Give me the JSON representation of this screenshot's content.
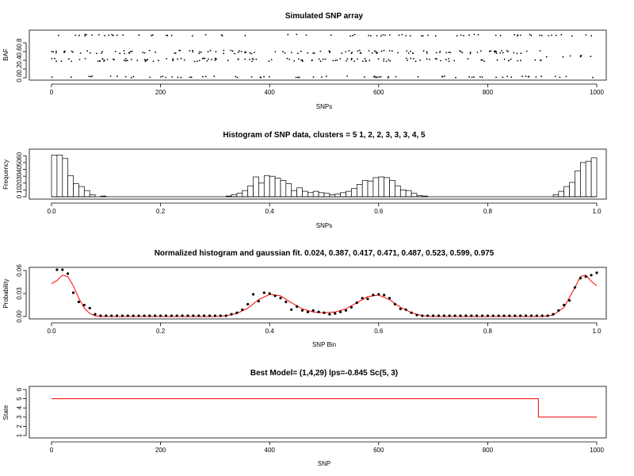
{
  "chart_data": [
    {
      "type": "scatter",
      "title": "Simulated SNP array",
      "xlabel": "SNPs",
      "ylabel": "BAF",
      "xlim": [
        0,
        1000
      ],
      "ylim": [
        0,
        1
      ],
      "xticks": [
        "0",
        "200",
        "400",
        "600",
        "800",
        "1000"
      ],
      "yticks": [
        "0.0",
        "0.2",
        "0.4",
        "0.6",
        "0.8"
      ],
      "point_color": "#000000",
      "bands": [
        {
          "y": 0.02,
          "from": 0,
          "to": 1000
        },
        {
          "y": 0.975,
          "from": 0,
          "to": 1000
        },
        {
          "y": 0.39,
          "from": 0,
          "to": 900
        },
        {
          "y": 0.61,
          "from": 0,
          "to": 900
        },
        {
          "y": 0.43,
          "from": 0,
          "to": 900
        },
        {
          "y": 0.57,
          "from": 0,
          "to": 900
        },
        {
          "y": 0.49,
          "from": 900,
          "to": 1000
        }
      ],
      "points_per_band": 70
    },
    {
      "type": "bar",
      "title": "Histogram of SNP data, clusters =  5   1, 2, 2, 3, 3, 3, 4, 5",
      "xlabel": "SNPs",
      "ylabel": "Frequency",
      "xlim": [
        0,
        1
      ],
      "ylim": [
        0,
        65
      ],
      "xticks": [
        "0.0",
        "0.2",
        "0.4",
        "0.6",
        "0.8",
        "1.0"
      ],
      "yticks": [
        "0",
        "10",
        "20",
        "30",
        "40",
        "50",
        "60"
      ],
      "bin_width": 0.01,
      "bins": [
        {
          "x": 0.0,
          "v": 61
        },
        {
          "x": 0.01,
          "v": 61
        },
        {
          "x": 0.02,
          "v": 56
        },
        {
          "x": 0.03,
          "v": 31
        },
        {
          "x": 0.04,
          "v": 19
        },
        {
          "x": 0.05,
          "v": 15
        },
        {
          "x": 0.06,
          "v": 9
        },
        {
          "x": 0.07,
          "v": 3
        },
        {
          "x": 0.08,
          "v": 0
        },
        {
          "x": 0.09,
          "v": 1
        },
        {
          "x": 0.32,
          "v": 1
        },
        {
          "x": 0.33,
          "v": 3
        },
        {
          "x": 0.34,
          "v": 5
        },
        {
          "x": 0.35,
          "v": 9
        },
        {
          "x": 0.36,
          "v": 16
        },
        {
          "x": 0.37,
          "v": 29
        },
        {
          "x": 0.38,
          "v": 20
        },
        {
          "x": 0.39,
          "v": 31
        },
        {
          "x": 0.4,
          "v": 30
        },
        {
          "x": 0.41,
          "v": 27
        },
        {
          "x": 0.42,
          "v": 24
        },
        {
          "x": 0.43,
          "v": 19
        },
        {
          "x": 0.44,
          "v": 9
        },
        {
          "x": 0.45,
          "v": 13
        },
        {
          "x": 0.46,
          "v": 8
        },
        {
          "x": 0.47,
          "v": 6
        },
        {
          "x": 0.48,
          "v": 8
        },
        {
          "x": 0.49,
          "v": 6
        },
        {
          "x": 0.5,
          "v": 5
        },
        {
          "x": 0.51,
          "v": 3
        },
        {
          "x": 0.52,
          "v": 4
        },
        {
          "x": 0.53,
          "v": 6
        },
        {
          "x": 0.54,
          "v": 8
        },
        {
          "x": 0.55,
          "v": 12
        },
        {
          "x": 0.56,
          "v": 18
        },
        {
          "x": 0.57,
          "v": 24
        },
        {
          "x": 0.58,
          "v": 23
        },
        {
          "x": 0.59,
          "v": 28
        },
        {
          "x": 0.6,
          "v": 29
        },
        {
          "x": 0.61,
          "v": 28
        },
        {
          "x": 0.62,
          "v": 24
        },
        {
          "x": 0.63,
          "v": 16
        },
        {
          "x": 0.64,
          "v": 10
        },
        {
          "x": 0.65,
          "v": 9
        },
        {
          "x": 0.66,
          "v": 5
        },
        {
          "x": 0.67,
          "v": 2
        },
        {
          "x": 0.68,
          "v": 1
        },
        {
          "x": 0.92,
          "v": 3
        },
        {
          "x": 0.93,
          "v": 8
        },
        {
          "x": 0.94,
          "v": 15
        },
        {
          "x": 0.95,
          "v": 21
        },
        {
          "x": 0.96,
          "v": 38
        },
        {
          "x": 0.97,
          "v": 50
        },
        {
          "x": 0.98,
          "v": 52
        },
        {
          "x": 0.99,
          "v": 57
        }
      ]
    },
    {
      "type": "scatter",
      "title": "Normalized histogram and gaussian fit.  0.024, 0.387, 0.417, 0.471, 0.487, 0.523, 0.599, 0.975",
      "xlabel": "SNP Bin",
      "ylabel": "Probability",
      "xlim": [
        0,
        1
      ],
      "ylim": [
        0,
        0.06
      ],
      "xticks": [
        "0.0",
        "0.2",
        "0.4",
        "0.6",
        "0.8",
        "1.0"
      ],
      "yticks": [
        "0.00",
        "0.03",
        "0.06"
      ],
      "point_color": "#000000",
      "fit_color": "#ff0000",
      "points": [
        {
          "x": 0.01,
          "y": 0.061
        },
        {
          "x": 0.02,
          "y": 0.061
        },
        {
          "x": 0.03,
          "y": 0.056
        },
        {
          "x": 0.04,
          "y": 0.031
        },
        {
          "x": 0.05,
          "y": 0.019
        },
        {
          "x": 0.06,
          "y": 0.015
        },
        {
          "x": 0.07,
          "y": 0.011
        },
        {
          "x": 0.08,
          "y": 0.003
        },
        {
          "x": 0.09,
          "y": 0.001
        },
        {
          "x": 0.1,
          "y": 0.001
        },
        {
          "x": 0.11,
          "y": 0.001
        },
        {
          "x": 0.12,
          "y": 0.001
        },
        {
          "x": 0.13,
          "y": 0.001
        },
        {
          "x": 0.14,
          "y": 0.001
        },
        {
          "x": 0.15,
          "y": 0.001
        },
        {
          "x": 0.16,
          "y": 0.001
        },
        {
          "x": 0.17,
          "y": 0.001
        },
        {
          "x": 0.18,
          "y": 0.001
        },
        {
          "x": 0.19,
          "y": 0.001
        },
        {
          "x": 0.2,
          "y": 0.001
        },
        {
          "x": 0.21,
          "y": 0.001
        },
        {
          "x": 0.22,
          "y": 0.001
        },
        {
          "x": 0.23,
          "y": 0.001
        },
        {
          "x": 0.24,
          "y": 0.001
        },
        {
          "x": 0.25,
          "y": 0.001
        },
        {
          "x": 0.26,
          "y": 0.001
        },
        {
          "x": 0.27,
          "y": 0.001
        },
        {
          "x": 0.28,
          "y": 0.001
        },
        {
          "x": 0.29,
          "y": 0.001
        },
        {
          "x": 0.3,
          "y": 0.001
        },
        {
          "x": 0.31,
          "y": 0.001
        },
        {
          "x": 0.32,
          "y": 0.001
        },
        {
          "x": 0.33,
          "y": 0.003
        },
        {
          "x": 0.34,
          "y": 0.005
        },
        {
          "x": 0.35,
          "y": 0.009
        },
        {
          "x": 0.36,
          "y": 0.016
        },
        {
          "x": 0.37,
          "y": 0.029
        },
        {
          "x": 0.38,
          "y": 0.02
        },
        {
          "x": 0.39,
          "y": 0.031
        },
        {
          "x": 0.4,
          "y": 0.03
        },
        {
          "x": 0.41,
          "y": 0.027
        },
        {
          "x": 0.42,
          "y": 0.024
        },
        {
          "x": 0.43,
          "y": 0.019
        },
        {
          "x": 0.44,
          "y": 0.009
        },
        {
          "x": 0.45,
          "y": 0.013
        },
        {
          "x": 0.46,
          "y": 0.008
        },
        {
          "x": 0.47,
          "y": 0.006
        },
        {
          "x": 0.48,
          "y": 0.008
        },
        {
          "x": 0.49,
          "y": 0.006
        },
        {
          "x": 0.5,
          "y": 0.005
        },
        {
          "x": 0.51,
          "y": 0.003
        },
        {
          "x": 0.52,
          "y": 0.004
        },
        {
          "x": 0.53,
          "y": 0.006
        },
        {
          "x": 0.54,
          "y": 0.008
        },
        {
          "x": 0.55,
          "y": 0.012
        },
        {
          "x": 0.56,
          "y": 0.018
        },
        {
          "x": 0.57,
          "y": 0.024
        },
        {
          "x": 0.58,
          "y": 0.023
        },
        {
          "x": 0.59,
          "y": 0.028
        },
        {
          "x": 0.6,
          "y": 0.029
        },
        {
          "x": 0.61,
          "y": 0.028
        },
        {
          "x": 0.62,
          "y": 0.024
        },
        {
          "x": 0.63,
          "y": 0.016
        },
        {
          "x": 0.64,
          "y": 0.01
        },
        {
          "x": 0.65,
          "y": 0.009
        },
        {
          "x": 0.66,
          "y": 0.005
        },
        {
          "x": 0.67,
          "y": 0.002
        },
        {
          "x": 0.68,
          "y": 0.001
        },
        {
          "x": 0.69,
          "y": 0.001
        },
        {
          "x": 0.7,
          "y": 0.001
        },
        {
          "x": 0.71,
          "y": 0.001
        },
        {
          "x": 0.72,
          "y": 0.001
        },
        {
          "x": 0.73,
          "y": 0.001
        },
        {
          "x": 0.74,
          "y": 0.001
        },
        {
          "x": 0.75,
          "y": 0.001
        },
        {
          "x": 0.76,
          "y": 0.001
        },
        {
          "x": 0.77,
          "y": 0.001
        },
        {
          "x": 0.78,
          "y": 0.001
        },
        {
          "x": 0.79,
          "y": 0.001
        },
        {
          "x": 0.8,
          "y": 0.001
        },
        {
          "x": 0.81,
          "y": 0.001
        },
        {
          "x": 0.82,
          "y": 0.001
        },
        {
          "x": 0.83,
          "y": 0.001
        },
        {
          "x": 0.84,
          "y": 0.001
        },
        {
          "x": 0.85,
          "y": 0.001
        },
        {
          "x": 0.86,
          "y": 0.001
        },
        {
          "x": 0.87,
          "y": 0.001
        },
        {
          "x": 0.88,
          "y": 0.001
        },
        {
          "x": 0.89,
          "y": 0.001
        },
        {
          "x": 0.9,
          "y": 0.001
        },
        {
          "x": 0.91,
          "y": 0.001
        },
        {
          "x": 0.92,
          "y": 0.003
        },
        {
          "x": 0.93,
          "y": 0.008
        },
        {
          "x": 0.94,
          "y": 0.015
        },
        {
          "x": 0.95,
          "y": 0.021
        },
        {
          "x": 0.96,
          "y": 0.038
        },
        {
          "x": 0.97,
          "y": 0.05
        },
        {
          "x": 0.98,
          "y": 0.052
        },
        {
          "x": 0.99,
          "y": 0.054
        },
        {
          "x": 1.0,
          "y": 0.057
        }
      ],
      "fit": [
        {
          "x": 0.0,
          "y": 0.043
        },
        {
          "x": 0.01,
          "y": 0.047
        },
        {
          "x": 0.02,
          "y": 0.054
        },
        {
          "x": 0.03,
          "y": 0.052
        },
        {
          "x": 0.04,
          "y": 0.04
        },
        {
          "x": 0.05,
          "y": 0.024
        },
        {
          "x": 0.06,
          "y": 0.011
        },
        {
          "x": 0.07,
          "y": 0.004
        },
        {
          "x": 0.08,
          "y": 0.001
        },
        {
          "x": 0.09,
          "y": 0.0
        },
        {
          "x": 0.3,
          "y": 0.0
        },
        {
          "x": 0.32,
          "y": 0.001
        },
        {
          "x": 0.34,
          "y": 0.004
        },
        {
          "x": 0.36,
          "y": 0.011
        },
        {
          "x": 0.38,
          "y": 0.022
        },
        {
          "x": 0.4,
          "y": 0.029
        },
        {
          "x": 0.42,
          "y": 0.027
        },
        {
          "x": 0.44,
          "y": 0.018
        },
        {
          "x": 0.46,
          "y": 0.01
        },
        {
          "x": 0.48,
          "y": 0.006
        },
        {
          "x": 0.5,
          "y": 0.005
        },
        {
          "x": 0.52,
          "y": 0.006
        },
        {
          "x": 0.54,
          "y": 0.01
        },
        {
          "x": 0.56,
          "y": 0.018
        },
        {
          "x": 0.58,
          "y": 0.026
        },
        {
          "x": 0.6,
          "y": 0.028
        },
        {
          "x": 0.62,
          "y": 0.022
        },
        {
          "x": 0.64,
          "y": 0.012
        },
        {
          "x": 0.66,
          "y": 0.005
        },
        {
          "x": 0.68,
          "y": 0.001
        },
        {
          "x": 0.7,
          "y": 0.0
        },
        {
          "x": 0.9,
          "y": 0.0
        },
        {
          "x": 0.92,
          "y": 0.002
        },
        {
          "x": 0.94,
          "y": 0.012
        },
        {
          "x": 0.96,
          "y": 0.038
        },
        {
          "x": 0.97,
          "y": 0.052
        },
        {
          "x": 0.98,
          "y": 0.054
        },
        {
          "x": 0.99,
          "y": 0.046
        },
        {
          "x": 1.0,
          "y": 0.04
        }
      ]
    },
    {
      "type": "line",
      "title": "Best Model= (1,4,29) lps=-0.845 Sc(5, 3)",
      "xlabel": "SNP",
      "ylabel": "State",
      "xlim": [
        0,
        1000
      ],
      "ylim": [
        1,
        6
      ],
      "xticks": [
        "0",
        "200",
        "400",
        "600",
        "800",
        "1000"
      ],
      "yticks": [
        "1",
        "2",
        "3",
        "4",
        "5",
        "6"
      ],
      "line_color": "#ff0000",
      "x": [
        0,
        893,
        893,
        1000
      ],
      "y": [
        5,
        5,
        3,
        3
      ]
    }
  ]
}
